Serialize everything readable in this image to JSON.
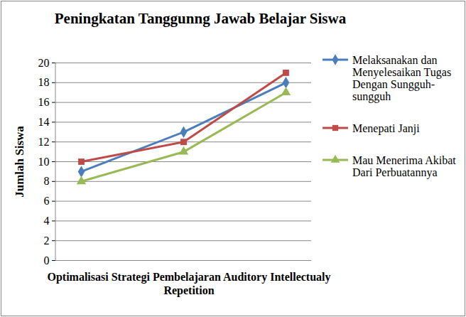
{
  "chart_data": {
    "type": "line",
    "title": "Peningkatan Tanggunng Jawab Belajar Siswa",
    "x_label": "Optimalisasi Strategi Pembelajaran Auditory Intellectualy Repetition",
    "y_label": "Jumlah Siswa",
    "categories": [
      null,
      null,
      null
    ],
    "series": [
      {
        "name": "Melaksanakan dan Menyelesaikan Tugas Dengan Sungguh-sungguh",
        "color": "#4a7ebb",
        "marker": "diamond",
        "values": [
          9,
          13,
          18
        ]
      },
      {
        "name": "Menepati Janji",
        "color": "#be4b48",
        "marker": "square",
        "values": [
          10,
          12,
          19
        ]
      },
      {
        "name": "Mau Menerima Akibat Dari Perbuatannya",
        "color": "#98b954",
        "marker": "triangle",
        "values": [
          8,
          11,
          17
        ]
      }
    ],
    "ylim": [
      0,
      20
    ],
    "yticks": [
      0,
      2,
      4,
      6,
      8,
      10,
      12,
      14,
      16,
      18,
      20
    ],
    "grid": true,
    "legend": "right"
  }
}
